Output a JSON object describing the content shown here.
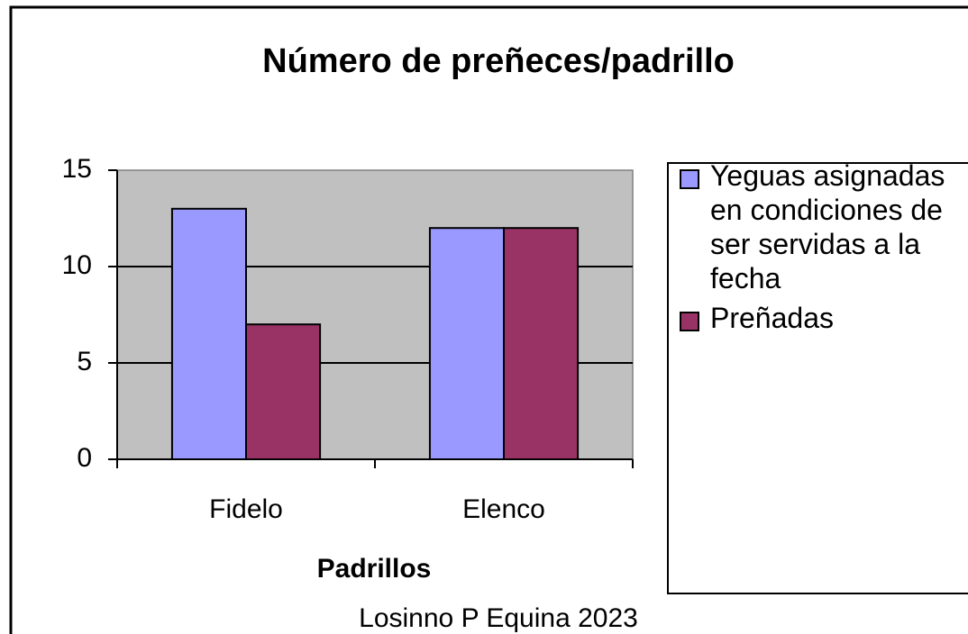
{
  "chart_data": {
    "type": "bar",
    "title": "Número de preñeces/padrillo",
    "xlabel": "Padrillos",
    "caption": "Losinno P Equina 2023",
    "categories": [
      "Fidelo",
      "Elenco"
    ],
    "series": [
      {
        "name": "Yeguas asignadas en condiciones de ser servidas a la fecha",
        "color": "#9999ff",
        "values": [
          13,
          12
        ]
      },
      {
        "name": "Preñadas",
        "color": "#993366",
        "values": [
          7,
          12
        ]
      }
    ],
    "ylim": [
      0,
      15
    ],
    "yticks": [
      0,
      5,
      10,
      15
    ],
    "grid": true,
    "plot_background": "#c0c0c0",
    "legend": "right"
  }
}
